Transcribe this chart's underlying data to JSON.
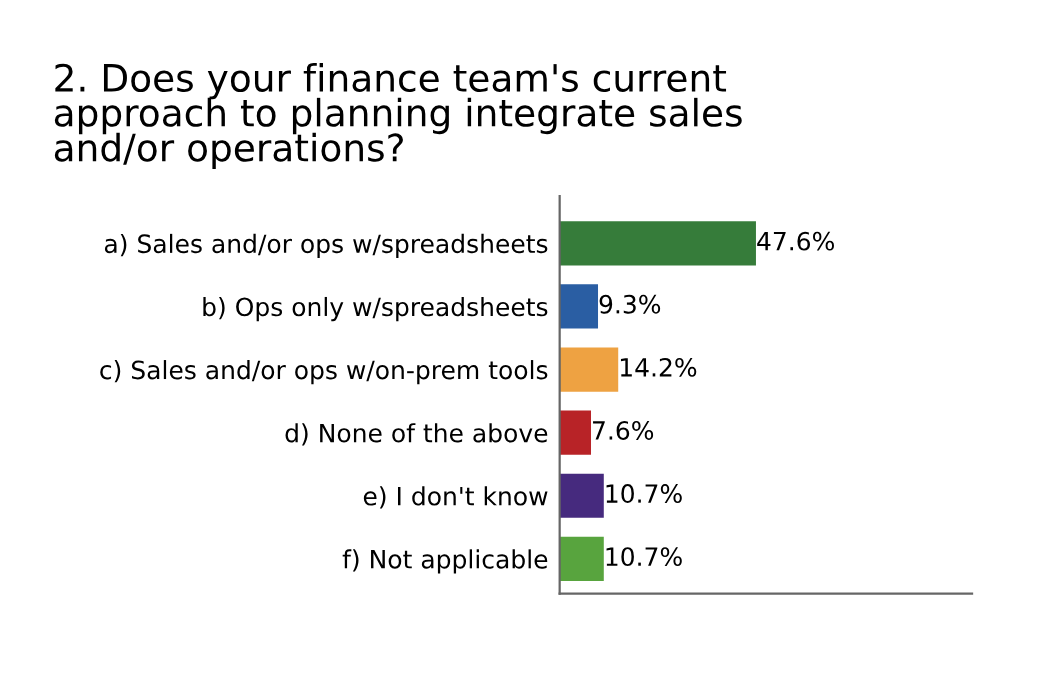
{
  "chart_data": {
    "type": "bar",
    "orientation": "horizontal",
    "title": "2. Does your finance team's current\napproach to planning integrate sales\nand/or operations?",
    "categories": [
      "a) Sales and/or ops w/spreadsheets",
      "b) Ops only w/spreadsheets",
      "c) Sales and/or ops w/on-prem tools",
      "d) None of the above",
      "e) I don't know",
      "f) Not applicable"
    ],
    "values": [
      47.6,
      9.3,
      14.2,
      7.6,
      10.7,
      10.7
    ],
    "colors": [
      "#367c3a",
      "#2a5ea3",
      "#eea242",
      "#b82327",
      "#462a7e",
      "#58a43e"
    ],
    "value_labels": [
      "47.6%",
      "9.3%",
      "14.2%",
      "7.6%",
      "10.7%",
      "10.7%"
    ],
    "xlim": [
      0,
      100
    ],
    "tick_labels": "y",
    "grid": false,
    "legend": false
  }
}
